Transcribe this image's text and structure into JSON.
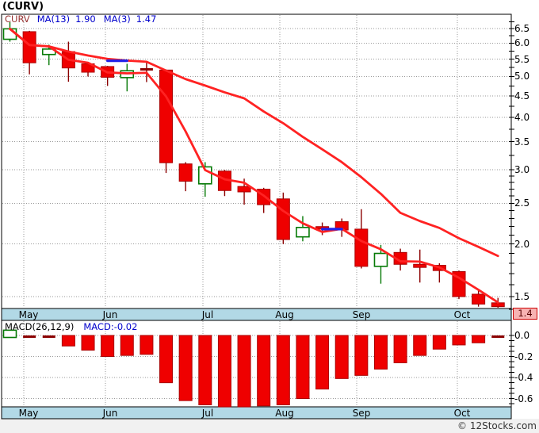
{
  "title": "(CURV)",
  "price_panel": {
    "legend": {
      "symbol": "CURV",
      "ma13_label": "MA(13)",
      "ma13_value": "1.90",
      "ma3_label": "MA(3)",
      "ma3_value": "1.47"
    },
    "y_tick_labels": [
      "6.5",
      "6.0",
      "5.5",
      "5.0",
      "4.5",
      "4.0",
      "3.5",
      "3.0",
      "2.5",
      "2.0",
      "1.5"
    ],
    "current_price_tag": "1.4"
  },
  "macd_panel": {
    "legend_label": "MACD(26,12,9)",
    "legend_value": "MACD:-0.02",
    "y_tick_labels": [
      "0.0",
      "-0.2",
      "-0.4",
      "-0.6"
    ]
  },
  "month_labels": [
    "May",
    "Jun",
    "Jul",
    "Aug",
    "Sep",
    "Oct"
  ],
  "copyright": "© 12Stocks.com",
  "colors": {
    "up": "#067A06",
    "down": "#EF0000",
    "down_border": "#AA0000",
    "dash": "#8B0000",
    "ma": "#FF2222",
    "ma_flat": "#2222E8",
    "axis_bar_bg": "#B2D9E6",
    "grid": "#9A9A9A",
    "tag_bg": "#F7B3B3",
    "tag_border": "#CC0000",
    "legend_symbol": "#993333",
    "legend_blue": "#0000CC"
  },
  "chart_data": [
    {
      "type": "candlestick",
      "symbol": "CURV",
      "timeframe": "weekly",
      "yscale": "log",
      "ylim": [
        1.4,
        7.0
      ],
      "y_ticks": [
        6.5,
        6.0,
        5.5,
        5.0,
        4.5,
        4.0,
        3.5,
        3.0,
        2.5,
        2.0,
        1.5
      ],
      "x_axis_months": [
        "May",
        "Jun",
        "Jul",
        "Aug",
        "Sep",
        "Oct"
      ],
      "ohlc": [
        [
          6.13,
          6.73,
          6.05,
          6.49
        ],
        [
          6.39,
          6.42,
          5.06,
          5.39
        ],
        [
          5.64,
          5.95,
          5.32,
          5.81
        ],
        [
          5.73,
          6.05,
          4.86,
          5.24
        ],
        [
          5.36,
          5.41,
          5.0,
          5.12
        ],
        [
          5.28,
          5.3,
          4.75,
          4.98
        ],
        [
          4.97,
          5.36,
          4.61,
          5.16
        ],
        [
          5.2,
          5.41,
          4.85,
          5.17
        ],
        [
          5.18,
          5.2,
          2.95,
          3.12
        ],
        [
          3.1,
          3.13,
          2.67,
          2.82
        ],
        [
          2.78,
          3.13,
          2.59,
          3.05
        ],
        [
          2.98,
          3.0,
          2.6,
          2.68
        ],
        [
          2.74,
          2.86,
          2.48,
          2.66
        ],
        [
          2.7,
          2.72,
          2.37,
          2.48
        ],
        [
          2.56,
          2.65,
          2.0,
          2.05
        ],
        [
          2.08,
          2.33,
          2.03,
          2.19
        ],
        [
          2.2,
          2.25,
          2.1,
          2.17
        ],
        [
          2.26,
          2.3,
          2.08,
          2.16
        ],
        [
          2.17,
          2.42,
          1.75,
          1.77
        ],
        [
          1.77,
          1.99,
          1.61,
          1.9
        ],
        [
          1.91,
          1.95,
          1.73,
          1.79
        ],
        [
          1.79,
          1.94,
          1.62,
          1.76
        ],
        [
          1.78,
          1.8,
          1.62,
          1.73
        ],
        [
          1.72,
          1.73,
          1.48,
          1.5
        ],
        [
          1.52,
          1.55,
          1.42,
          1.44
        ],
        [
          1.45,
          1.49,
          1.4,
          1.42
        ]
      ],
      "last_price": 1.4,
      "overlays": [
        {
          "name": "MA(13)",
          "period": 13,
          "last_value": 1.9
        },
        {
          "name": "MA(3)",
          "period": 3,
          "last_value": 1.47
        }
      ],
      "flat_ma_segments": [
        {
          "from_week": 6,
          "to_week": 7,
          "price": 5.45
        },
        {
          "from_week": 17,
          "to_week": 18,
          "price": 2.17
        }
      ]
    },
    {
      "type": "bar",
      "name": "MACD(26,12,9)",
      "last_value": -0.02,
      "ylim": [
        -0.7,
        0.15
      ],
      "y_ticks": [
        0.0,
        -0.2,
        -0.4,
        -0.6
      ],
      "values": [
        0.05,
        -0.02,
        -0.02,
        -0.1,
        -0.14,
        -0.2,
        -0.19,
        -0.18,
        -0.45,
        -0.62,
        -0.66,
        -0.68,
        -0.68,
        -0.67,
        -0.66,
        -0.6,
        -0.51,
        -0.41,
        -0.38,
        -0.32,
        -0.26,
        -0.19,
        -0.13,
        -0.09,
        -0.07,
        -0.02
      ]
    }
  ]
}
